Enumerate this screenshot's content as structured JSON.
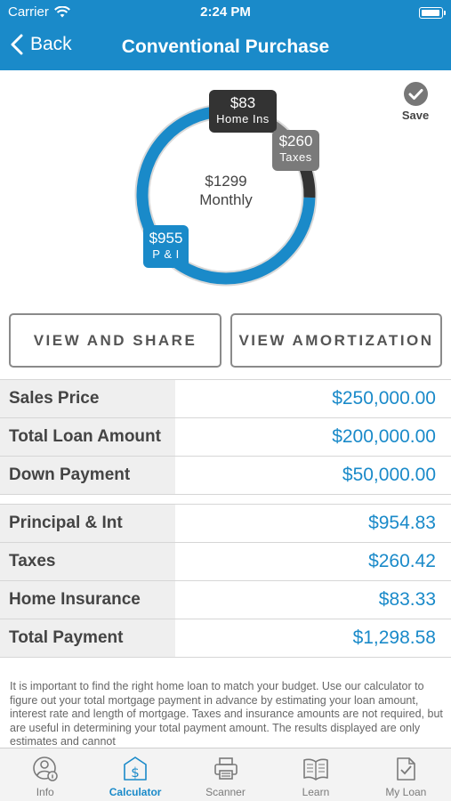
{
  "status_bar": {
    "carrier": "Carrier",
    "time": "2:24 PM"
  },
  "nav": {
    "back_label": "Back",
    "title": "Conventional Purchase"
  },
  "save": {
    "label": "Save"
  },
  "chart_data": {
    "type": "pie",
    "center_amount": "$1299",
    "center_label": "Monthly",
    "slices": [
      {
        "label": "P & I",
        "amount": "$955",
        "value": 955,
        "color": "#1a8ac9"
      },
      {
        "label": "Taxes",
        "amount": "$260",
        "value": 260,
        "color": "#7a7a7a"
      },
      {
        "label": "Home Ins",
        "amount": "$83",
        "value": 83,
        "color": "#333333"
      }
    ]
  },
  "buttons": {
    "view_share": "VIEW AND SHARE",
    "view_amortization": "VIEW AMORTIZATION"
  },
  "loan_table": [
    {
      "label": "Sales Price",
      "value": "$250,000.00"
    },
    {
      "label": "Total Loan Amount",
      "value": "$200,000.00"
    },
    {
      "label": "Down Payment",
      "value": "$50,000.00"
    }
  ],
  "payment_table": [
    {
      "label": "Principal & Int",
      "value": "$954.83"
    },
    {
      "label": "Taxes",
      "value": "$260.42"
    },
    {
      "label": "Home Insurance",
      "value": "$83.33"
    },
    {
      "label": "Total Payment",
      "value": "$1,298.58"
    }
  ],
  "disclaimer": "It is important to find the right home loan to match your budget. Use our calculator to figure out your total mortgage payment in advance by estimating your loan amount, interest rate and length of mortgage. Taxes and insurance amounts are not required, but are useful in determining your total payment amount.  The results displayed are only estimates and cannot",
  "tabs": [
    {
      "label": "Info",
      "icon": "info-person-icon",
      "active": false
    },
    {
      "label": "Calculator",
      "icon": "calculator-dollar-icon",
      "active": true
    },
    {
      "label": "Scanner",
      "icon": "printer-scanner-icon",
      "active": false
    },
    {
      "label": "Learn",
      "icon": "book-icon",
      "active": false
    },
    {
      "label": "My Loan",
      "icon": "document-check-icon",
      "active": false
    }
  ],
  "colors": {
    "brand_blue": "#1a8ac9",
    "tab_active": "#1a8ac9",
    "tab_inactive": "#7a7a7a"
  }
}
